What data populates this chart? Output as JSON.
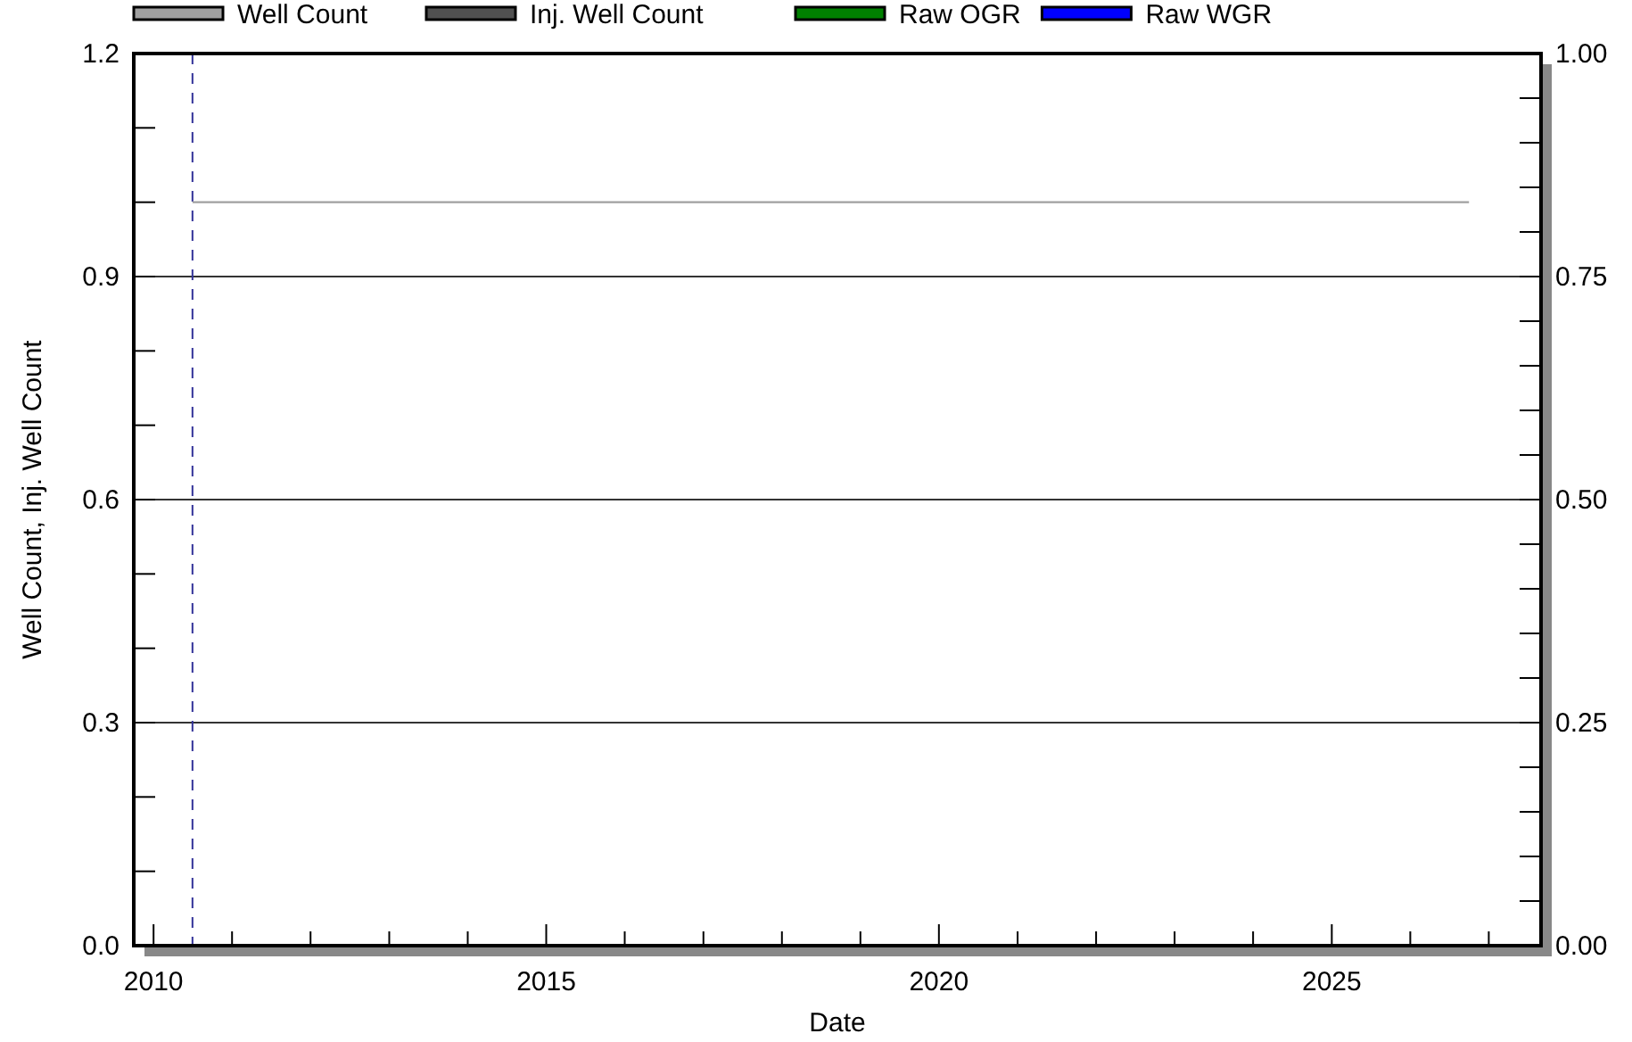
{
  "chart_data": {
    "type": "line",
    "xlabel": "Date",
    "ylabel": "Well Count, Inj. Well Count",
    "xlim": [
      "2009-10",
      "2027-09"
    ],
    "xticks": [
      {
        "value": "2010",
        "label": "2010"
      },
      {
        "value": "2011",
        "label": null
      },
      {
        "value": "2012",
        "label": null
      },
      {
        "value": "2013",
        "label": null
      },
      {
        "value": "2014",
        "label": null
      },
      {
        "value": "2015",
        "label": "2015"
      },
      {
        "value": "2016",
        "label": null
      },
      {
        "value": "2017",
        "label": null
      },
      {
        "value": "2018",
        "label": null
      },
      {
        "value": "2019",
        "label": null
      },
      {
        "value": "2020",
        "label": "2020"
      },
      {
        "value": "2021",
        "label": null
      },
      {
        "value": "2022",
        "label": null
      },
      {
        "value": "2023",
        "label": null
      },
      {
        "value": "2024",
        "label": null
      },
      {
        "value": "2025",
        "label": "2025"
      },
      {
        "value": "2026",
        "label": null
      },
      {
        "value": "2027",
        "label": null
      }
    ],
    "ylim": [
      0,
      1.2
    ],
    "yticks": [
      {
        "value": 0,
        "label": "0.0"
      },
      {
        "value": 0.1,
        "label": null
      },
      {
        "value": 0.2,
        "label": null
      },
      {
        "value": 0.3,
        "label": "0.3"
      },
      {
        "value": 0.4,
        "label": null
      },
      {
        "value": 0.5,
        "label": null
      },
      {
        "value": 0.6,
        "label": "0.6"
      },
      {
        "value": 0.7,
        "label": null
      },
      {
        "value": 0.8,
        "label": null
      },
      {
        "value": 0.9,
        "label": "0.9"
      },
      {
        "value": 1.0,
        "label": null
      },
      {
        "value": 1.1,
        "label": null
      },
      {
        "value": 1.2,
        "label": "1.2"
      }
    ],
    "y2lim": [
      0,
      1
    ],
    "y2ticks": [
      {
        "value": 0,
        "label": "0.00"
      },
      {
        "value": 0.05,
        "label": null
      },
      {
        "value": 0.1,
        "label": null
      },
      {
        "value": 0.15,
        "label": null
      },
      {
        "value": 0.2,
        "label": null
      },
      {
        "value": 0.25,
        "label": "0.25"
      },
      {
        "value": 0.3,
        "label": null
      },
      {
        "value": 0.35,
        "label": null
      },
      {
        "value": 0.4,
        "label": null
      },
      {
        "value": 0.45,
        "label": null
      },
      {
        "value": 0.5,
        "label": "0.50"
      },
      {
        "value": 0.55,
        "label": null
      },
      {
        "value": 0.6,
        "label": null
      },
      {
        "value": 0.65,
        "label": null
      },
      {
        "value": 0.7,
        "label": null
      },
      {
        "value": 0.75,
        "label": "0.75"
      },
      {
        "value": 0.8,
        "label": null
      },
      {
        "value": 0.85,
        "label": null
      },
      {
        "value": 0.9,
        "label": null
      },
      {
        "value": 0.95,
        "label": null
      },
      {
        "value": 1.0,
        "label": "1.00"
      }
    ],
    "grid": "y",
    "legend": "top",
    "marker": "none",
    "line_style": "solid",
    "series": [
      {
        "name": "Well Count",
        "color": "#a0a0a0",
        "x": [
          "2010-07",
          "2026-10"
        ],
        "values": [
          1,
          1
        ]
      },
      {
        "name": "Inj. Well Count",
        "color": "#505050"
      },
      {
        "name": "Raw OGR",
        "color": "#008000"
      },
      {
        "name": "Raw WGR",
        "color": "#0000ff"
      }
    ],
    "ref_lines": [
      {
        "axis": "x",
        "value": "2010-07",
        "color": "#333399",
        "line_style": "dashed"
      }
    ]
  }
}
